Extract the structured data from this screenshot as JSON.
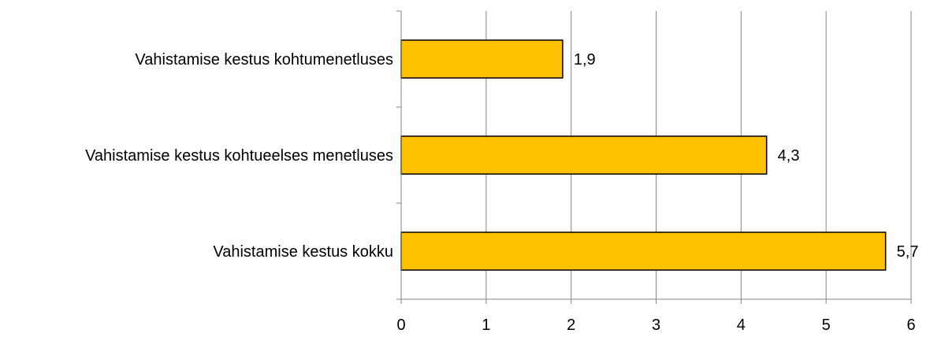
{
  "chart_data": {
    "type": "bar",
    "orientation": "horizontal",
    "categories": [
      "Vahistamise kestus kohtumenetluses",
      "Vahistamise kestus kohtueelses menetluses",
      "Vahistamise kestus kokku"
    ],
    "values": [
      1.9,
      4.3,
      5.7
    ],
    "value_labels": [
      "1,9",
      "4,3",
      "5,7"
    ],
    "xlim": [
      0,
      6
    ],
    "x_ticks": [
      0,
      1,
      2,
      3,
      4,
      5,
      6
    ],
    "x_tick_labels": [
      "0",
      "1",
      "2",
      "3",
      "4",
      "5",
      "6"
    ],
    "grid": "vertical",
    "legend": "none",
    "colors": {
      "bar_fill": "#FFC000",
      "bar_stroke": "#000000",
      "grid": "#868686",
      "axis": "#868686"
    }
  }
}
